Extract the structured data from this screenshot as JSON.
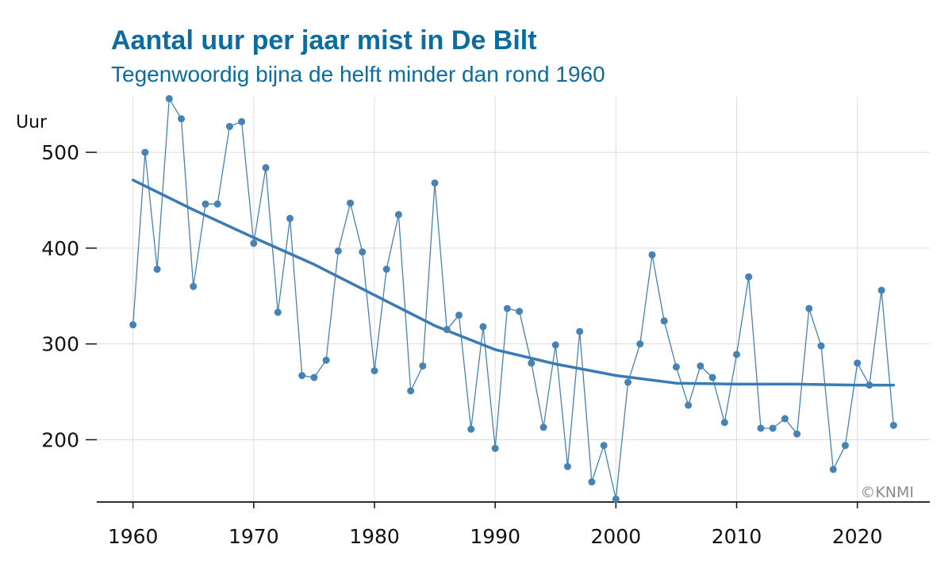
{
  "chart_data": {
    "type": "line",
    "title": "Aantal uur per jaar mist in De Bilt",
    "subtitle": "Tegenwoordig bijna de helft minder dan rond 1960",
    "ylabel": "Uur",
    "xlabel": "",
    "xlim": [
      1957,
      2026
    ],
    "ylim": [
      135,
      558
    ],
    "x_ticks": [
      "1960",
      "1970",
      "1980",
      "1990",
      "2000",
      "2010",
      "2020"
    ],
    "y_ticks": [
      "200",
      "300",
      "400",
      "500"
    ],
    "grid": true,
    "credit": "©KNMI",
    "series": [
      {
        "color": "#4682b4",
        "x": [
          1960,
          1961,
          1962,
          1963,
          1964,
          1965,
          1966,
          1967,
          1968,
          1969,
          1970,
          1971,
          1972,
          1973,
          1974,
          1975,
          1976,
          1977,
          1978,
          1979,
          1980,
          1981,
          1982,
          1983,
          1984,
          1985,
          1986,
          1987,
          1988,
          1989,
          1990,
          1991,
          1992,
          1993,
          1994,
          1995,
          1996,
          1997,
          1998,
          1999,
          2000,
          2001,
          2002,
          2003,
          2004,
          2005,
          2006,
          2007,
          2008,
          2009,
          2010,
          2011,
          2012,
          2013,
          2014,
          2015,
          2016,
          2017,
          2018,
          2019,
          2020,
          2021,
          2022,
          2023
        ],
        "y": [
          320,
          500,
          378,
          556,
          535,
          360,
          446,
          446,
          527,
          532,
          405,
          484,
          333,
          431,
          267,
          265,
          283,
          397,
          447,
          396,
          272,
          378,
          435,
          251,
          277,
          468,
          315,
          330,
          211,
          318,
          191,
          337,
          334,
          280,
          213,
          299,
          172,
          313,
          156,
          194,
          138,
          260,
          300,
          393,
          324,
          276,
          236,
          277,
          265,
          218,
          289,
          370,
          212,
          212,
          222,
          206,
          337,
          298,
          169,
          194,
          280,
          257,
          356,
          215
        ]
      },
      {
        "color": "#3a7ab5",
        "x": [
          1960,
          1965,
          1970,
          1975,
          1980,
          1985,
          1990,
          1995,
          2000,
          2005,
          2010,
          2015,
          2020,
          2023
        ],
        "y": [
          471,
          440,
          411,
          383,
          351,
          319,
          294,
          279,
          267,
          259,
          258,
          258,
          257,
          257
        ]
      }
    ]
  }
}
